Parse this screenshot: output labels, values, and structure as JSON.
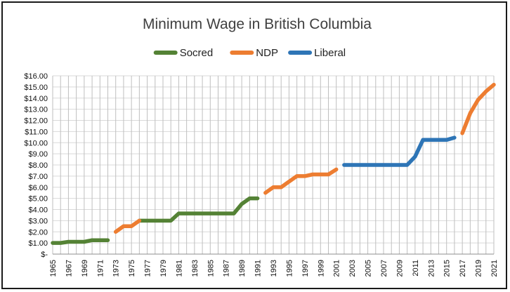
{
  "chart_data": {
    "type": "line",
    "title": "Minimum Wage in British Columbia",
    "legend_position": "top",
    "grid": {
      "horizontal": true,
      "vertical": true
    },
    "ylim": [
      0,
      16
    ],
    "y_ticks": [
      "$-",
      "$1.00",
      "$2.00",
      "$3.00",
      "$4.00",
      "$5.00",
      "$6.00",
      "$7.00",
      "$8.00",
      "$9.00",
      "$10.00",
      "$11.00",
      "$12.00",
      "$13.00",
      "$14.00",
      "$15.00",
      "$16.00"
    ],
    "x_ticks": [
      "1965",
      "1967",
      "1969",
      "1971",
      "1973",
      "1975",
      "1977",
      "1979",
      "1981",
      "1983",
      "1985",
      "1987",
      "1989",
      "1991",
      "1993",
      "1995",
      "1997",
      "1999",
      "2001",
      "2003",
      "2005",
      "2007",
      "2009",
      "2011",
      "2013",
      "2015",
      "2017",
      "2019",
      "2021"
    ],
    "xlim": [
      1965,
      2021
    ],
    "series": [
      {
        "name": "Socred",
        "color": "#548235",
        "segments": [
          {
            "x": [
              1965,
              1966,
              1967,
              1968,
              1969,
              1970,
              1971,
              1972
            ],
            "y": [
              1.0,
              1.0,
              1.1,
              1.1,
              1.1,
              1.25,
              1.25,
              1.25
            ]
          },
          {
            "x": [
              1976,
              1977,
              1978,
              1979,
              1980,
              1981,
              1982,
              1983,
              1984,
              1985,
              1986,
              1987,
              1988,
              1989,
              1990,
              1991
            ],
            "y": [
              3.0,
              3.0,
              3.0,
              3.0,
              3.0,
              3.65,
              3.65,
              3.65,
              3.65,
              3.65,
              3.65,
              3.65,
              3.65,
              4.5,
              5.0,
              5.0
            ]
          }
        ]
      },
      {
        "name": "NDP",
        "color": "#ED7D31",
        "segments": [
          {
            "x": [
              1973,
              1974,
              1975,
              1976
            ],
            "y": [
              2.0,
              2.5,
              2.5,
              3.0
            ]
          },
          {
            "x": [
              1992,
              1993,
              1994,
              1995,
              1996,
              1997,
              1998,
              1999,
              2000,
              2001
            ],
            "y": [
              5.5,
              6.0,
              6.0,
              6.5,
              7.0,
              7.0,
              7.15,
              7.15,
              7.15,
              7.6
            ]
          },
          {
            "x": [
              2017,
              2018,
              2019,
              2020,
              2021
            ],
            "y": [
              10.85,
              12.65,
              13.85,
              14.6,
              15.2
            ]
          }
        ]
      },
      {
        "name": "Liberal",
        "color": "#2E75B6",
        "segments": [
          {
            "x": [
              2002,
              2003,
              2004,
              2005,
              2006,
              2007,
              2008,
              2009,
              2010,
              2011,
              2012,
              2013,
              2014,
              2015,
              2016
            ],
            "y": [
              8.0,
              8.0,
              8.0,
              8.0,
              8.0,
              8.0,
              8.0,
              8.0,
              8.0,
              8.75,
              10.25,
              10.25,
              10.25,
              10.25,
              10.45
            ]
          }
        ]
      }
    ]
  }
}
